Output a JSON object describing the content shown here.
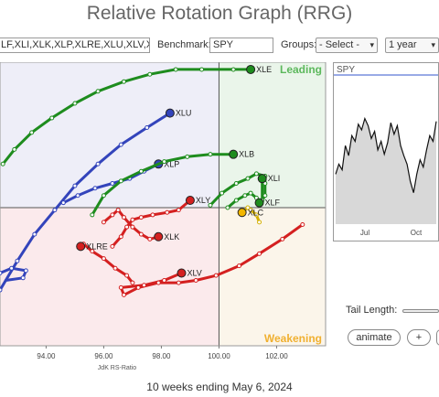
{
  "title": "Relative Rotation Graph (RRG)",
  "toolbar": {
    "symbols_value": "LF,XLI,XLK,XLP,XLRE,XLU,XLV,XL",
    "benchmark_label": "Benchmark:",
    "benchmark_value": "SPY",
    "groups_label": "Groups:",
    "groups_value": "- Select -",
    "period_value": "1 year"
  },
  "spy_panel": {
    "title": "SPY",
    "x_ticks": [
      "Jul",
      "Oct"
    ]
  },
  "controls": {
    "tail_length_label": "Tail Length:",
    "animate_label": "animate",
    "plus_label": "+"
  },
  "footer": "10 weeks ending May 6, 2024",
  "colors": {
    "leading": "#eaf5ea",
    "weakening": "#fbf5ea",
    "lagging": "#fbeaec",
    "improving": "#eeeef8",
    "green": "#1e8c1e",
    "blue": "#3344bb",
    "red": "#d42020",
    "yellow": "#f2b600",
    "black": "#1b3a1b"
  },
  "chart_data": {
    "type": "scatter",
    "xlabel": "JdK RS-Ratio",
    "xlim": [
      92.4,
      103.7
    ],
    "ylim": [
      94.3,
      106.0
    ],
    "center": [
      100,
      100
    ],
    "x_ticks": [
      94,
      96,
      98,
      100,
      102
    ],
    "quadrant_labels": {
      "leading": "Leading",
      "weakening": "Weakening"
    },
    "series": [
      {
        "name": "XLE",
        "color": "#1e8c1e",
        "head_color": "#1e8c1e",
        "points": [
          [
            92.5,
            101.8
          ],
          [
            92.9,
            102.4
          ],
          [
            93.5,
            103.1
          ],
          [
            94.2,
            103.7
          ],
          [
            95.0,
            104.3
          ],
          [
            95.8,
            104.8
          ],
          [
            96.7,
            105.2
          ],
          [
            97.6,
            105.5
          ],
          [
            98.5,
            105.7
          ],
          [
            99.4,
            105.7
          ],
          [
            100.5,
            105.7
          ],
          [
            101.1,
            105.7
          ]
        ]
      },
      {
        "name": "XLU",
        "color": "#3344bb",
        "head_color": "#3344bb",
        "points": [
          [
            92.4,
            96.6
          ],
          [
            93.0,
            97.8
          ],
          [
            93.6,
            98.9
          ],
          [
            94.3,
            99.9
          ],
          [
            95.0,
            100.9
          ],
          [
            95.8,
            101.8
          ],
          [
            96.6,
            102.6
          ],
          [
            97.5,
            103.3
          ],
          [
            98.3,
            103.9
          ]
        ]
      },
      {
        "name": "XLP",
        "color": "#3344bb",
        "head_color": "#3344bb",
        "points": [
          [
            94.6,
            100.2
          ],
          [
            95.1,
            100.5
          ],
          [
            95.7,
            100.8
          ],
          [
            96.3,
            101.0
          ],
          [
            96.9,
            101.2
          ],
          [
            97.4,
            101.5
          ],
          [
            97.9,
            101.8
          ]
        ]
      },
      {
        "name": "XLB",
        "color": "#1e8c1e",
        "head_color": "#1e8c1e",
        "points": [
          [
            95.6,
            99.7
          ],
          [
            96.0,
            100.5
          ],
          [
            96.6,
            101.1
          ],
          [
            97.3,
            101.5
          ],
          [
            98.1,
            101.9
          ],
          [
            98.9,
            102.1
          ],
          [
            99.7,
            102.2
          ],
          [
            100.5,
            102.2
          ]
        ]
      },
      {
        "name": "XLI",
        "color": "#1e8c1e",
        "head_color": "#1e8c1e",
        "points": [
          [
            99.7,
            100.1
          ],
          [
            100.1,
            100.6
          ],
          [
            100.6,
            101.0
          ],
          [
            101.0,
            101.2
          ],
          [
            101.3,
            101.4
          ],
          [
            101.6,
            101.3
          ],
          [
            101.6,
            101.0
          ],
          [
            101.6,
            100.5
          ],
          [
            101.5,
            100.3
          ],
          [
            101.5,
            101.2
          ]
        ]
      },
      {
        "name": "XLF",
        "color": "#1e8c1e",
        "head_color": "#1e8c1e",
        "points": [
          [
            100.3,
            100.0
          ],
          [
            100.6,
            100.3
          ],
          [
            100.9,
            100.5
          ],
          [
            101.1,
            100.6
          ],
          [
            101.3,
            100.4
          ],
          [
            101.4,
            100.2
          ]
        ]
      },
      {
        "name": "XLC",
        "color": "#d4b000",
        "head_color": "#f2b600",
        "points": [
          [
            101.4,
            99.4
          ],
          [
            101.3,
            99.7
          ],
          [
            101.1,
            99.9
          ],
          [
            101.0,
            100.0
          ],
          [
            100.8,
            99.8
          ]
        ]
      },
      {
        "name": "XLK",
        "color": "#d42020",
        "head_color": "#d42020",
        "points": [
          [
            96.0,
            99.4
          ],
          [
            96.3,
            99.7
          ],
          [
            96.5,
            99.9
          ],
          [
            96.7,
            99.6
          ],
          [
            97.0,
            99.2
          ],
          [
            97.3,
            98.9
          ],
          [
            97.6,
            98.7
          ],
          [
            97.9,
            98.8
          ]
        ]
      },
      {
        "name": "XLY",
        "color": "#d42020",
        "head_color": "#d42020",
        "points": [
          [
            96.3,
            98.4
          ],
          [
            96.6,
            98.8
          ],
          [
            96.8,
            99.2
          ],
          [
            97.0,
            99.5
          ],
          [
            97.3,
            99.6
          ],
          [
            97.7,
            99.7
          ],
          [
            98.2,
            99.8
          ],
          [
            98.6,
            99.9
          ],
          [
            99.0,
            100.3
          ]
        ]
      },
      {
        "name": "XLRE",
        "color": "#d42020",
        "head_color": "#d42020",
        "points": [
          [
            97.0,
            96.9
          ],
          [
            96.8,
            97.2
          ],
          [
            96.4,
            97.5
          ],
          [
            96.0,
            97.9
          ],
          [
            95.6,
            98.2
          ],
          [
            95.3,
            98.5
          ],
          [
            95.2,
            98.4
          ]
        ]
      },
      {
        "name": "XLV",
        "color": "#d42020",
        "head_color": "#d42020",
        "points": [
          [
            102.9,
            99.3
          ],
          [
            102.2,
            98.7
          ],
          [
            101.4,
            98.1
          ],
          [
            100.7,
            97.6
          ],
          [
            99.9,
            97.2
          ],
          [
            99.2,
            97.0
          ],
          [
            98.6,
            96.9
          ],
          [
            97.9,
            96.9
          ],
          [
            97.2,
            96.7
          ],
          [
            96.7,
            96.4
          ],
          [
            96.6,
            96.7
          ],
          [
            97.4,
            96.8
          ],
          [
            98.1,
            97.0
          ],
          [
            98.7,
            97.3
          ]
        ]
      },
      {
        "name": "XLRE-tail-blue",
        "color": "#3344bb",
        "head_color": "",
        "points": [
          [
            92.4,
            97.3
          ],
          [
            92.8,
            97.5
          ],
          [
            93.3,
            97.4
          ],
          [
            93.2,
            97.1
          ],
          [
            92.6,
            97.0
          ]
        ]
      }
    ],
    "spy_prices": [
      0.35,
      0.42,
      0.38,
      0.55,
      0.48,
      0.62,
      0.58,
      0.7,
      0.66,
      0.74,
      0.69,
      0.6,
      0.65,
      0.52,
      0.58,
      0.49,
      0.57,
      0.71,
      0.63,
      0.69,
      0.55,
      0.48,
      0.42,
      0.3,
      0.22,
      0.35,
      0.45,
      0.4,
      0.52,
      0.62,
      0.58,
      0.72
    ]
  }
}
